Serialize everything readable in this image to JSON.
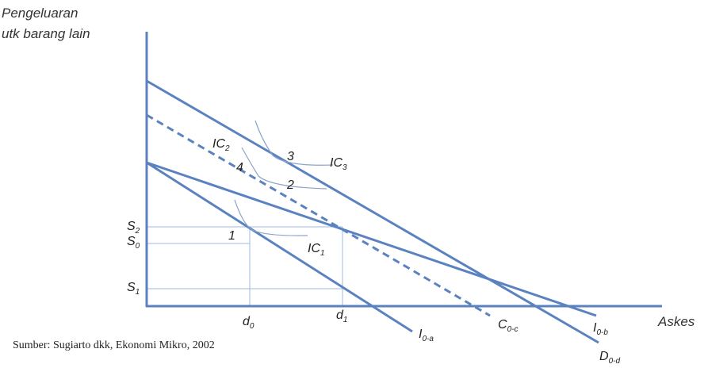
{
  "y_axis_label": {
    "line1": "Pengeluaran",
    "line2": "utk barang lain"
  },
  "x_axis_label": "Askes",
  "x_ticks": [
    {
      "main": "d",
      "sub": "0"
    },
    {
      "main": "d",
      "sub": "1"
    }
  ],
  "y_ticks": [
    {
      "main": "S",
      "sub": "2"
    },
    {
      "main": "S",
      "sub": "0"
    },
    {
      "main": "S",
      "sub": "1"
    }
  ],
  "line_labels": [
    {
      "main": "I",
      "sub": "0-a"
    },
    {
      "main": "C",
      "sub": "0-c"
    },
    {
      "main": "I",
      "sub": "0-b"
    },
    {
      "main": "D",
      "sub": "0-d"
    }
  ],
  "curve_labels": [
    {
      "main": "IC",
      "sub": "1"
    },
    {
      "main": "IC",
      "sub": "2"
    },
    {
      "main": "IC",
      "sub": "3"
    }
  ],
  "point_labels": [
    "1",
    "2",
    "3",
    "4"
  ],
  "source": "Sumber: Sugiarto dkk, Ekonomi Mikro, 2002"
}
